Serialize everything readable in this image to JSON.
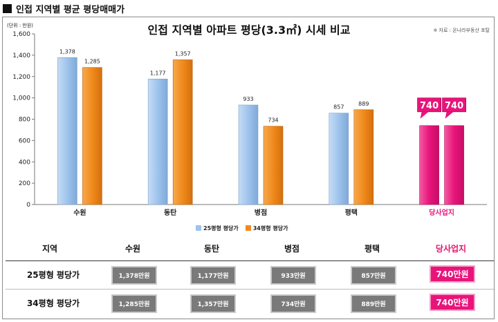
{
  "header": {
    "title": "인접 지역별 평균 평당매매가"
  },
  "chart_data": {
    "type": "bar",
    "title": "인접 지역별 아파트 평당(3.3㎡) 시세 비교",
    "source": "※ 자료 : 온나라부동산 포탈",
    "unit_label": "(단위 : 만원)",
    "categories": [
      "수원",
      "동탄",
      "병점",
      "평택",
      "당사업지"
    ],
    "series": [
      {
        "name": "25평형 평당가",
        "values": [
          1378,
          1177,
          933,
          857,
          740
        ],
        "labels": [
          "1,378",
          "1,177",
          "933",
          "857",
          "740"
        ]
      },
      {
        "name": "34평형 평당가",
        "values": [
          1285,
          1357,
          734,
          889,
          740
        ],
        "labels": [
          "1,285",
          "1,357",
          "734",
          "889",
          "740"
        ]
      }
    ],
    "highlight_category": "당사업지",
    "ylim": [
      0,
      1600
    ],
    "yticks": [
      "0",
      "200",
      "400",
      "600",
      "800",
      "1,000",
      "1,200",
      "1,400",
      "1,600"
    ],
    "legend_position": "bottom",
    "colors": {
      "series1": "#9ec3ec",
      "series2": "#f08a1c",
      "highlight": "#e8147a",
      "callout": "#e8147a"
    }
  },
  "table": {
    "header_label": "지역",
    "columns": [
      "수원",
      "동탄",
      "병점",
      "평택",
      "당사업지"
    ],
    "rows": [
      {
        "label": "25평형 평당가",
        "cells": [
          "1,378만원",
          "1,177만원",
          "933만원",
          "857만원",
          "740만원"
        ]
      },
      {
        "label": "34평형 평당가",
        "cells": [
          "1,285만원",
          "1,357만원",
          "734만원",
          "889만원",
          "740만원"
        ]
      }
    ]
  }
}
